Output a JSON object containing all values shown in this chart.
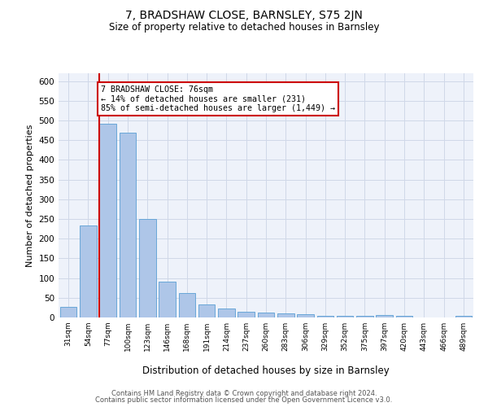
{
  "title": "7, BRADSHAW CLOSE, BARNSLEY, S75 2JN",
  "subtitle": "Size of property relative to detached houses in Barnsley",
  "xlabel": "Distribution of detached houses by size in Barnsley",
  "ylabel": "Number of detached properties",
  "categories": [
    "31sqm",
    "54sqm",
    "77sqm",
    "100sqm",
    "123sqm",
    "146sqm",
    "168sqm",
    "191sqm",
    "214sqm",
    "237sqm",
    "260sqm",
    "283sqm",
    "306sqm",
    "329sqm",
    "352sqm",
    "375sqm",
    "397sqm",
    "420sqm",
    "443sqm",
    "466sqm",
    "489sqm"
  ],
  "values": [
    26,
    234,
    492,
    470,
    250,
    90,
    63,
    33,
    23,
    14,
    12,
    10,
    8,
    5,
    4,
    5,
    7,
    4,
    1,
    1,
    5
  ],
  "bar_color": "#aec6e8",
  "bar_edge_color": "#5a9fd4",
  "vline_x_index": 2,
  "vline_color": "#cc0000",
  "annotation_text": "7 BRADSHAW CLOSE: 76sqm\n← 14% of detached houses are smaller (231)\n85% of semi-detached houses are larger (1,449) →",
  "annotation_box_color": "#ffffff",
  "annotation_box_edge_color": "#cc0000",
  "ylim": [
    0,
    620
  ],
  "yticks": [
    0,
    50,
    100,
    150,
    200,
    250,
    300,
    350,
    400,
    450,
    500,
    550,
    600
  ],
  "grid_color": "#d0d8e8",
  "bg_color": "#eef2fa",
  "footer1": "Contains HM Land Registry data © Crown copyright and database right 2024.",
  "footer2": "Contains public sector information licensed under the Open Government Licence v3.0."
}
